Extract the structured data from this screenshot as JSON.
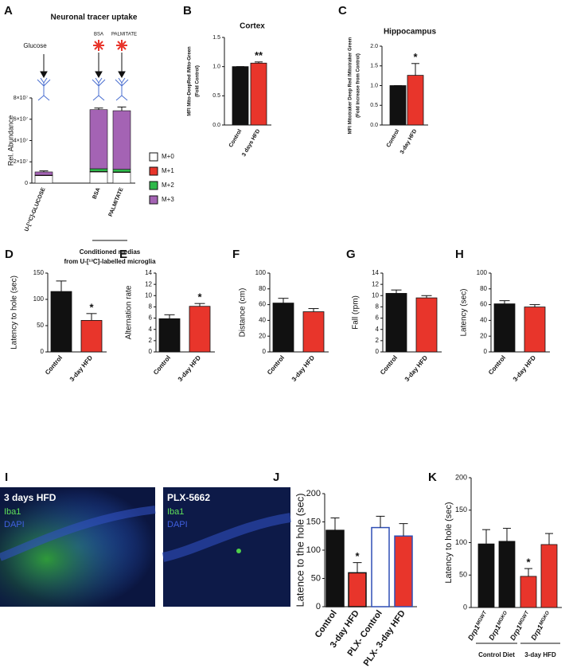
{
  "chart_data": [
    {
      "type": "stacked-bar",
      "panel": "A",
      "title": "Neuronal tracer uptake",
      "ylabel": "Rel. Abundance",
      "categories": [
        "U-[¹³C]-GLUCOSE",
        "BSA",
        "PALMITATE"
      ],
      "series": [
        {
          "name": "M+0",
          "color": "#ffffff",
          "values": [
            7000000,
            10500000,
            10000000
          ]
        },
        {
          "name": "M+1",
          "color": "#e8352b",
          "values": [
            500000,
            500000,
            500000
          ]
        },
        {
          "name": "M+2",
          "color": "#2eb84a",
          "values": [
            0,
            2500000,
            2500000
          ]
        },
        {
          "name": "M+3",
          "color": "#a463b4",
          "values": [
            3000000,
            55500000,
            55000000
          ],
          "errors": [
            1000000,
            1500000,
            3500000
          ]
        }
      ],
      "ylim": [
        0,
        80000000
      ],
      "yticks": [
        0,
        {
          "value": 20000000,
          "label": "2×10⁷"
        },
        {
          "value": 40000000,
          "label": "4×10⁷"
        },
        {
          "value": 60000000,
          "label": "6×10⁷"
        },
        {
          "value": 80000000,
          "label": "8×10⁷"
        }
      ],
      "schematic": {
        "source": "Glucose",
        "treatments": [
          "BSA",
          "PALMITATE"
        ]
      },
      "group_label": [
        "Conditioned medias",
        "from U-[¹³C]-labelled microglia"
      ]
    },
    {
      "type": "bar",
      "panel": "B",
      "title": "Cortex",
      "ylabel": [
        "MFI Mito-DeepRed /Mito-Green",
        "(Fold Control)"
      ],
      "categories": [
        "Control",
        "3 days HFD"
      ],
      "values": [
        1.0,
        1.06
      ],
      "errors": [
        0,
        0.02
      ],
      "colors": [
        "#111111",
        "#e8352b"
      ],
      "significance": [
        null,
        "**"
      ],
      "ylim": [
        0,
        1.5
      ],
      "yticks": [
        {
          "value": 0,
          "label": "0.0"
        },
        {
          "value": 0.5,
          "label": "0.5"
        },
        {
          "value": 1,
          "label": "1.0"
        },
        {
          "value": 1.5,
          "label": "1.5"
        }
      ]
    },
    {
      "type": "bar",
      "panel": "C",
      "title": "Hippocampus",
      "ylabel": [
        "MFI Mitotraker Deep Red /Mitotraker Green",
        "(Fold increase from Control)"
      ],
      "categories": [
        "Control",
        "3-day HFD"
      ],
      "values": [
        1.0,
        1.26
      ],
      "errors": [
        0,
        0.3
      ],
      "colors": [
        "#111111",
        "#e8352b"
      ],
      "significance": [
        null,
        "*"
      ],
      "ylim": [
        0,
        2
      ],
      "yticks": [
        {
          "value": 0,
          "label": "0.0"
        },
        {
          "value": 0.5,
          "label": "0.5"
        },
        {
          "value": 1,
          "label": "1.0"
        },
        {
          "value": 1.5,
          "label": "1.5"
        },
        {
          "value": 2,
          "label": "2.0"
        }
      ]
    },
    {
      "type": "bar",
      "panel": "D",
      "ylabel": "Latency to hole (sec)",
      "categories": [
        "Control",
        "3-day HFD"
      ],
      "values": [
        115,
        60
      ],
      "errors": [
        20,
        13
      ],
      "colors": [
        "#111111",
        "#e8352b"
      ],
      "significance": [
        null,
        "*"
      ],
      "ylim": [
        0,
        150
      ],
      "yticks": [
        0,
        50,
        100,
        150
      ]
    },
    {
      "type": "bar",
      "panel": "E",
      "ylabel": "Alternation rate",
      "categories": [
        "Control",
        "3-day HFD"
      ],
      "values": [
        5.9,
        8.1
      ],
      "errors": [
        0.7,
        0.5
      ],
      "colors": [
        "#111111",
        "#e8352b"
      ],
      "significance": [
        null,
        "*"
      ],
      "ylim": [
        0,
        14
      ],
      "yticks": [
        0,
        2,
        4,
        6,
        8,
        10,
        12,
        14
      ]
    },
    {
      "type": "bar",
      "panel": "F",
      "ylabel": "Distance (cm)",
      "categories": [
        "Control",
        "3-day HFD"
      ],
      "values": [
        62,
        51
      ],
      "errors": [
        6,
        4
      ],
      "colors": [
        "#111111",
        "#e8352b"
      ],
      "ylim": [
        0,
        100
      ],
      "yticks": [
        0,
        20,
        40,
        60,
        80,
        100
      ]
    },
    {
      "type": "bar",
      "panel": "G",
      "ylabel": "Fall (rpm)",
      "categories": [
        "Control",
        "3-day HFD"
      ],
      "values": [
        10.4,
        9.6
      ],
      "errors": [
        0.6,
        0.4
      ],
      "colors": [
        "#111111",
        "#e8352b"
      ],
      "ylim": [
        0,
        14
      ],
      "yticks": [
        0,
        2,
        4,
        6,
        8,
        10,
        12,
        14
      ]
    },
    {
      "type": "bar",
      "panel": "H",
      "ylabel": "Latency (sec)",
      "categories": [
        "Control",
        "3-day HFD"
      ],
      "values": [
        61,
        57
      ],
      "errors": [
        4,
        3
      ],
      "colors": [
        "#111111",
        "#e8352b"
      ],
      "ylim": [
        0,
        100
      ],
      "yticks": [
        0,
        20,
        40,
        60,
        80,
        100
      ]
    },
    {
      "type": "bar",
      "panel": "J",
      "ylabel": "Latence to the hole (sec)",
      "categories": [
        "Control",
        "3-day HFD",
        "PLX- Control",
        "PLX- 3-day HFD"
      ],
      "values": [
        135,
        60,
        140,
        125
      ],
      "errors": [
        22,
        18,
        20,
        22
      ],
      "colors": [
        "#111111",
        "#e8352b",
        "#ffffff",
        "#e8352b"
      ],
      "edgecolors": [
        "#111111",
        "#111111",
        "#2f4fb5",
        "#2f4fb5"
      ],
      "significance": [
        null,
        "*",
        null,
        null
      ],
      "ylim": [
        0,
        200
      ],
      "yticks": [
        0,
        50,
        100,
        150,
        200
      ]
    },
    {
      "type": "bar",
      "panel": "K",
      "ylabel": "Latency to hole (sec)",
      "categories": [
        "Drp1ᴹᴳᵂᵀ",
        "Drp1ᴹᴳᴷᴼ",
        "Drp1ᴹᴳᵂᵀ",
        "Drp1ᴹᴳᴷᴼ"
      ],
      "values": [
        98,
        102,
        48,
        97
      ],
      "errors": [
        22,
        20,
        12,
        17
      ],
      "colors": [
        "#111111",
        "#111111",
        "#e8352b",
        "#e8352b"
      ],
      "significance": [
        null,
        null,
        "*",
        null
      ],
      "ylim": [
        0,
        200
      ],
      "yticks": [
        0,
        50,
        100,
        150,
        200
      ],
      "group_labels": [
        "Control Diet",
        "3-day HFD"
      ]
    }
  ],
  "images": {
    "panel": "I",
    "panes": [
      {
        "title": "3 days HFD",
        "labels": [
          "Iba1",
          "DAPI"
        ]
      },
      {
        "title": "PLX-5662",
        "labels": [
          "Iba1",
          "DAPI"
        ]
      }
    ]
  }
}
